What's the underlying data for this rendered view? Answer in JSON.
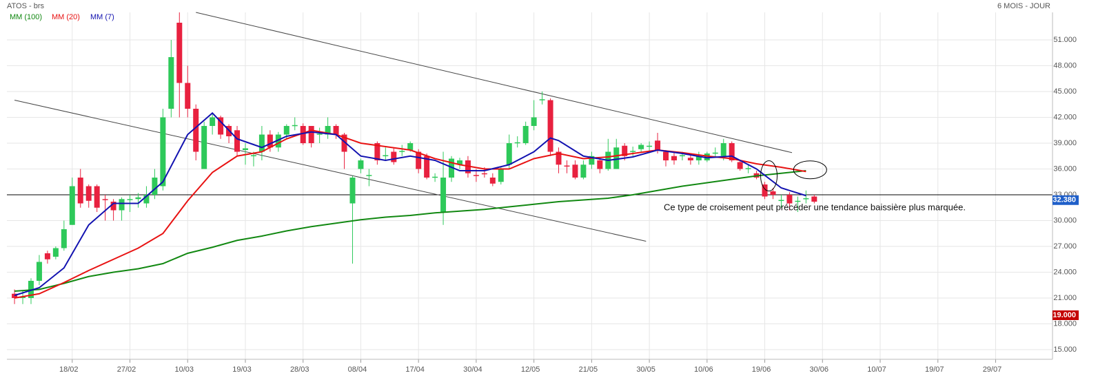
{
  "chart_data": {
    "type": "candlestick",
    "title": "ATOS - brs",
    "subtitle": "6 MOIS - JOUR",
    "note": "Ce type de croisement peut précéder une tendance baissière plus marquée.",
    "up_color": "#2ec95a",
    "down_color": "#e8213f",
    "grid": true,
    "xlim": [
      -0.925,
      125.9
    ],
    "ylim": [
      13.88,
      54.2
    ],
    "xticks": [
      {
        "value": 7,
        "label": "18/02"
      },
      {
        "value": 14,
        "label": "27/02"
      },
      {
        "value": 21,
        "label": "10/03"
      },
      {
        "value": 28,
        "label": "19/03"
      },
      {
        "value": 35,
        "label": "28/03"
      },
      {
        "value": 42,
        "label": "08/04"
      },
      {
        "value": 49,
        "label": "17/04"
      },
      {
        "value": 56,
        "label": "30/04"
      },
      {
        "value": 63,
        "label": "12/05"
      },
      {
        "value": 70,
        "label": "21/05"
      },
      {
        "value": 77,
        "label": "30/05"
      },
      {
        "value": 84,
        "label": "10/06"
      },
      {
        "value": 91,
        "label": "19/06"
      },
      {
        "value": 98,
        "label": "30/06"
      },
      {
        "value": 105,
        "label": "10/07"
      },
      {
        "value": 112,
        "label": "19/07"
      },
      {
        "value": 119,
        "label": "29/07"
      }
    ],
    "yticks": [
      {
        "value": 15,
        "label": "15.000"
      },
      {
        "value": 18,
        "label": "18.000"
      },
      {
        "value": 21,
        "label": "21.000"
      },
      {
        "value": 24,
        "label": "24.000"
      },
      {
        "value": 27,
        "label": "27.000"
      },
      {
        "value": 30,
        "label": "30.000"
      },
      {
        "value": 33,
        "label": "33.000"
      },
      {
        "value": 36,
        "label": "36.000"
      },
      {
        "value": 39,
        "label": "39.000"
      },
      {
        "value": 42,
        "label": "42.000"
      },
      {
        "value": 45,
        "label": "45.000"
      },
      {
        "value": 48,
        "label": "48.000"
      },
      {
        "value": 51,
        "label": "51.000"
      }
    ],
    "x": [
      0,
      1,
      2,
      3,
      4,
      5,
      6,
      7,
      8,
      9,
      10,
      11,
      12,
      13,
      14,
      15,
      16,
      17,
      18,
      19,
      20,
      21,
      22,
      23,
      24,
      25,
      26,
      27,
      28,
      29,
      30,
      31,
      32,
      33,
      34,
      35,
      36,
      37,
      38,
      39,
      40,
      41,
      42,
      43,
      44,
      45,
      46,
      47,
      48,
      49,
      50,
      51,
      52,
      53,
      54,
      55,
      56,
      57,
      58,
      59,
      60,
      61,
      62,
      63,
      64,
      65,
      66,
      67,
      68,
      69,
      70,
      71,
      72,
      73,
      74,
      75,
      76,
      77,
      78,
      79,
      80,
      81,
      82,
      83,
      84,
      85,
      86,
      87,
      88,
      89,
      90,
      91,
      92,
      93,
      94,
      95,
      96,
      97
    ],
    "open": [
      21.5,
      21.0,
      21.0,
      23.0,
      26.2,
      25.8,
      26.8,
      29.5,
      35.0,
      34.0,
      34.0,
      32.5,
      32.2,
      31.2,
      32.4,
      32.5,
      32.0,
      33.0,
      34.0,
      43.0,
      53.0,
      46.0,
      43.0,
      36.0,
      41.0,
      42.0,
      41.0,
      40.5,
      38.2,
      37.5,
      38.0,
      40.0,
      38.5,
      40.0,
      41.0,
      41.0,
      41.0,
      40.0,
      40.0,
      41.0,
      40.0,
      32.0,
      36.0,
      35.2,
      39.0,
      37.5,
      38.0,
      38.0,
      38.2,
      38.0,
      37.5,
      35.0,
      31.0,
      35.0,
      36.5,
      37.0,
      35.3,
      35.5,
      35.0,
      34.5,
      36.5,
      39.0,
      39.0,
      41.0,
      44.0,
      44.0,
      38.0,
      36.4,
      36.5,
      35.0,
      36.5,
      37.0,
      36.0,
      36.0,
      38.7,
      38.0,
      38.3,
      38.6,
      39.3,
      38.0,
      37.5,
      37.5,
      37.3,
      37.0,
      37.0,
      37.8,
      37.5,
      39.0,
      36.8,
      36.0,
      35.5,
      34.2,
      33.4,
      32.3,
      33.0,
      32.2,
      32.5,
      32.8
    ],
    "high": [
      22.0,
      21.8,
      23.3,
      26.0,
      26.5,
      27.0,
      30.0,
      35.0,
      36.0,
      34.2,
      34.2,
      33.0,
      32.5,
      32.7,
      33.0,
      33.2,
      34.0,
      36.0,
      43.0,
      51.0,
      54.2,
      48.0,
      43.5,
      41.5,
      42.5,
      42.2,
      41.2,
      41.0,
      39.0,
      38.0,
      41.0,
      40.5,
      40.3,
      41.2,
      42.0,
      41.3,
      41.0,
      40.8,
      42.0,
      41.2,
      40.2,
      35.2,
      37.2,
      36.0,
      39.2,
      38.5,
      38.5,
      38.8,
      39.2,
      38.3,
      37.8,
      35.5,
      38.0,
      37.5,
      37.3,
      37.5,
      36.0,
      36.2,
      35.5,
      36.3,
      40.0,
      39.8,
      41.5,
      44.0,
      45.0,
      44.2,
      38.5,
      37.0,
      37.0,
      37.0,
      38.0,
      37.2,
      39.5,
      39.5,
      39.0,
      38.6,
      39.0,
      39.2,
      40.2,
      38.2,
      38.0,
      38.0,
      37.6,
      38.0,
      38.0,
      38.5,
      39.5,
      39.2,
      37.0,
      36.5,
      35.8,
      34.5,
      33.8,
      33.0,
      33.3,
      32.8,
      33.5,
      33.0
    ],
    "low": [
      20.3,
      20.3,
      20.3,
      22.5,
      25.0,
      25.5,
      26.5,
      29.5,
      31.5,
      31.5,
      31.0,
      30.0,
      30.0,
      30.0,
      31.0,
      31.5,
      31.5,
      32.5,
      33.5,
      42.0,
      42.0,
      42.0,
      37.0,
      36.0,
      40.0,
      39.5,
      39.0,
      37.5,
      36.5,
      36.3,
      37.0,
      38.0,
      38.0,
      39.5,
      40.5,
      38.8,
      38.5,
      39.0,
      39.5,
      39.5,
      36.0,
      25.0,
      35.5,
      34.0,
      36.5,
      37.0,
      36.5,
      37.5,
      38.0,
      35.5,
      34.8,
      34.5,
      29.5,
      34.5,
      36.0,
      35.0,
      34.5,
      35.0,
      34.0,
      34.2,
      36.0,
      38.5,
      38.8,
      40.5,
      43.5,
      37.5,
      35.5,
      35.5,
      34.8,
      34.8,
      36.0,
      35.5,
      35.8,
      36.0,
      37.0,
      37.5,
      38.0,
      38.0,
      37.8,
      36.3,
      36.5,
      37.0,
      36.5,
      36.5,
      36.8,
      37.3,
      37.0,
      36.8,
      35.8,
      35.5,
      34.8,
      32.5,
      32.5,
      31.5,
      31.2,
      31.0,
      32.0,
      32.0
    ],
    "close": [
      21.0,
      21.2,
      23.0,
      25.2,
      25.5,
      26.8,
      29.0,
      34.0,
      32.0,
      32.3,
      31.5,
      32.4,
      31.2,
      32.5,
      32.5,
      32.7,
      33.0,
      35.0,
      42.0,
      49.0,
      46.0,
      43.0,
      38.0,
      41.0,
      42.0,
      40.0,
      39.8,
      38.0,
      38.4,
      37.6,
      40.0,
      38.5,
      40.0,
      41.0,
      41.1,
      39.0,
      39.0,
      40.1,
      41.0,
      40.0,
      38.0,
      35.0,
      37.0,
      35.3,
      37.0,
      37.6,
      36.8,
      38.1,
      39.0,
      36.0,
      35.0,
      35.1,
      35.0,
      37.2,
      37.0,
      35.5,
      35.2,
      35.4,
      34.3,
      36.0,
      39.0,
      39.1,
      41.0,
      42.0,
      44.1,
      38.0,
      36.5,
      36.3,
      35.0,
      36.5,
      37.5,
      36.0,
      38.0,
      38.5,
      37.5,
      38.1,
      38.8,
      38.7,
      38.2,
      37.0,
      37.0,
      37.6,
      37.0,
      37.5,
      37.8,
      37.9,
      39.0,
      37.0,
      36.0,
      36.1,
      35.0,
      32.8,
      33.0,
      32.4,
      32.0,
      32.3,
      32.6,
      32.2
    ],
    "series": [
      {
        "name": "MM (100)",
        "color": "#118811",
        "x": [
          0,
          3,
          6,
          9,
          12,
          15,
          18,
          21,
          24,
          27,
          30,
          33,
          36,
          39,
          42,
          45,
          48,
          51,
          54,
          57,
          60,
          63,
          66,
          69,
          72,
          75,
          78,
          81,
          84,
          87,
          90,
          93,
          96
        ],
        "values": [
          21.8,
          22.0,
          22.7,
          23.5,
          24.0,
          24.4,
          25.0,
          26.2,
          26.9,
          27.7,
          28.2,
          28.8,
          29.3,
          29.7,
          30.1,
          30.4,
          30.6,
          30.9,
          31.1,
          31.3,
          31.6,
          31.9,
          32.2,
          32.4,
          32.6,
          33.0,
          33.5,
          34.0,
          34.4,
          34.8,
          35.2,
          35.5,
          35.8
        ]
      },
      {
        "name": "MM (20)",
        "color": "#e81212",
        "x": [
          0,
          3,
          6,
          9,
          12,
          15,
          18,
          21,
          24,
          27,
          30,
          33,
          36,
          39,
          42,
          45,
          48,
          51,
          54,
          57,
          60,
          63,
          66,
          69,
          72,
          75,
          78,
          81,
          84,
          87,
          90,
          93,
          96
        ],
        "values": [
          21.0,
          21.5,
          22.8,
          24.2,
          25.5,
          26.8,
          28.5,
          32.3,
          35.6,
          37.5,
          38.0,
          39.5,
          40.5,
          40.0,
          39.0,
          38.6,
          38.2,
          37.2,
          36.5,
          36.0,
          36.0,
          37.2,
          37.8,
          37.2,
          37.4,
          37.8,
          38.2,
          37.9,
          37.5,
          37.2,
          36.6,
          36.2,
          35.7
        ]
      },
      {
        "name": "MM (7)",
        "color": "#1212b0",
        "x": [
          0,
          3,
          6,
          9,
          12,
          15,
          18,
          21,
          24,
          27,
          30,
          33,
          36,
          39,
          42,
          45,
          48,
          51,
          54,
          57,
          60,
          63,
          65,
          66,
          69,
          72,
          75,
          78,
          81,
          84,
          87,
          90,
          93,
          96
        ],
        "values": [
          21.3,
          22.2,
          24.5,
          29.5,
          32.0,
          32.0,
          34.5,
          40.0,
          42.5,
          39.5,
          38.5,
          39.8,
          40.3,
          40.0,
          37.5,
          37.0,
          37.5,
          37.0,
          35.8,
          35.8,
          36.5,
          38.0,
          39.6,
          39.3,
          37.5,
          37.0,
          37.4,
          38.2,
          37.8,
          37.3,
          37.5,
          36.0,
          33.8,
          32.9
        ]
      }
    ],
    "trendlines": [
      {
        "x": [
          22,
          94.3
        ],
        "y": [
          54.2,
          37.9
        ]
      },
      {
        "x": [
          0,
          76.6
        ],
        "y": [
          44.0,
          27.6
        ]
      }
    ],
    "hline": 33,
    "highlights": [
      {
        "x": 91.5,
        "y": 35.2
      },
      {
        "x": 96.5,
        "y": 35.9
      }
    ],
    "price_badges": [
      {
        "value": 32.38,
        "label": "32.380",
        "color": "#1f5fc9"
      },
      {
        "value": 19,
        "label": "19.000",
        "color": "#c40000"
      }
    ]
  }
}
